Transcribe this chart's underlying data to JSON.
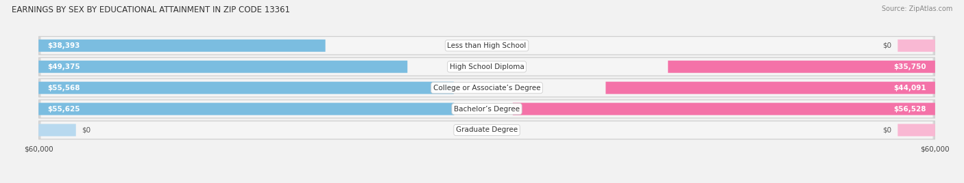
{
  "title": "EARNINGS BY SEX BY EDUCATIONAL ATTAINMENT IN ZIP CODE 13361",
  "source": "Source: ZipAtlas.com",
  "categories": [
    "Less than High School",
    "High School Diploma",
    "College or Associate’s Degree",
    "Bachelor’s Degree",
    "Graduate Degree"
  ],
  "male_values": [
    38393,
    49375,
    55568,
    55625,
    0
  ],
  "female_values": [
    0,
    35750,
    44091,
    56528,
    0
  ],
  "male_labels": [
    "$38,393",
    "$49,375",
    "$55,568",
    "$55,625",
    "$0"
  ],
  "female_labels": [
    "$0",
    "$35,750",
    "$44,091",
    "$56,528",
    "$0"
  ],
  "male_color": "#7bbde0",
  "female_color": "#f472a8",
  "male_placeholder_color": "#b8d9ef",
  "female_placeholder_color": "#f9b8d3",
  "background_color": "#f2f2f2",
  "row_bg_color": "#e8e8e8",
  "row_inner_color": "#f8f8f8",
  "max_value": 60000,
  "placeholder_value": 5000,
  "title_fontsize": 8.5,
  "label_fontsize": 7.5,
  "tick_fontsize": 7.5,
  "source_fontsize": 7,
  "cat_label_fontsize": 7.5
}
